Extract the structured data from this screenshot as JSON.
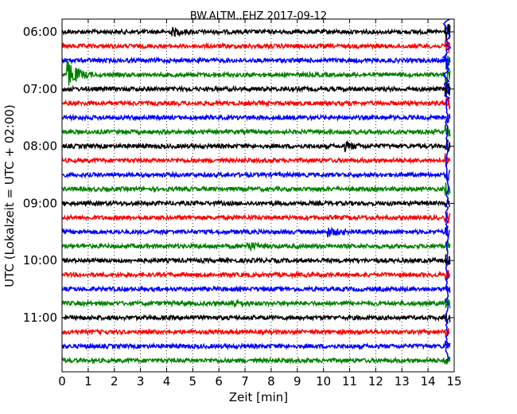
{
  "chart_data": {
    "type": "line",
    "title": "BW.ALTM..EHZ 2017-09-12",
    "xlabel": "Zeit  [min]",
    "ylabel": "UTC (Lokalzeit = UTC + 02:00)",
    "x_range": [
      0,
      15
    ],
    "x_ticks": [
      0,
      1,
      2,
      3,
      4,
      5,
      6,
      7,
      8,
      9,
      10,
      11,
      12,
      13,
      14,
      15
    ],
    "y_tick_labels": [
      "06:00",
      "07:00",
      "08:00",
      "09:00",
      "10:00",
      "11:00"
    ],
    "y_tick_rows": [
      0,
      4,
      8,
      12,
      16,
      20
    ],
    "grid": "vertical dotted",
    "row_interval_minutes": 15,
    "row_colors": [
      "#000000",
      "#ff0000",
      "#0000ff",
      "#008000"
    ],
    "row_count": 24,
    "rows": [
      {
        "start": "06:00",
        "amplitude": 0.12,
        "events": [
          {
            "x": 4.2,
            "amp": 0.2
          },
          {
            "x": 14.7,
            "amp": 0.5
          }
        ]
      },
      {
        "start": "06:15",
        "amplitude": 0.12,
        "events": [
          {
            "x": 14.7,
            "amp": 0.5
          }
        ]
      },
      {
        "start": "06:30",
        "amplitude": 0.12,
        "events": [
          {
            "x": 14.7,
            "amp": 0.5
          }
        ]
      },
      {
        "start": "06:45",
        "amplitude": 0.12,
        "events": [
          {
            "x": 0.2,
            "amp": 0.8
          },
          {
            "x": 14.7,
            "amp": 1.2
          }
        ]
      },
      {
        "start": "07:00",
        "amplitude": 0.12,
        "events": [
          {
            "x": 14.7,
            "amp": 0.4
          }
        ]
      },
      {
        "start": "07:15",
        "amplitude": 0.12,
        "events": [
          {
            "x": 14.7,
            "amp": 0.4
          }
        ]
      },
      {
        "start": "07:30",
        "amplitude": 0.12,
        "events": [
          {
            "x": 14.7,
            "amp": 0.3
          }
        ]
      },
      {
        "start": "07:45",
        "amplitude": 0.12,
        "events": [
          {
            "x": 14.7,
            "amp": 0.3
          }
        ]
      },
      {
        "start": "08:00",
        "amplitude": 0.12,
        "events": [
          {
            "x": 10.8,
            "amp": 0.2
          },
          {
            "x": 14.7,
            "amp": 0.3
          }
        ]
      },
      {
        "start": "08:15",
        "amplitude": 0.12,
        "events": [
          {
            "x": 14.7,
            "amp": 0.3
          }
        ]
      },
      {
        "start": "08:30",
        "amplitude": 0.12,
        "events": [
          {
            "x": 14.7,
            "amp": 0.3
          }
        ]
      },
      {
        "start": "08:45",
        "amplitude": 0.12,
        "events": [
          {
            "x": 14.7,
            "amp": 0.3
          }
        ]
      },
      {
        "start": "09:00",
        "amplitude": 0.12,
        "events": [
          {
            "x": 14.7,
            "amp": 0.25
          }
        ]
      },
      {
        "start": "09:15",
        "amplitude": 0.12,
        "events": [
          {
            "x": 14.7,
            "amp": 0.25
          }
        ]
      },
      {
        "start": "09:30",
        "amplitude": 0.12,
        "events": [
          {
            "x": 10.2,
            "amp": 0.2
          },
          {
            "x": 14.7,
            "amp": 0.25
          }
        ]
      },
      {
        "start": "09:45",
        "amplitude": 0.12,
        "events": [
          {
            "x": 7.1,
            "amp": 0.2
          },
          {
            "x": 14.7,
            "amp": 0.25
          }
        ]
      },
      {
        "start": "10:00",
        "amplitude": 0.12,
        "events": [
          {
            "x": 14.7,
            "amp": 0.25
          }
        ]
      },
      {
        "start": "10:15",
        "amplitude": 0.12,
        "events": [
          {
            "x": 14.7,
            "amp": 0.25
          }
        ]
      },
      {
        "start": "10:30",
        "amplitude": 0.12,
        "events": [
          {
            "x": 14.7,
            "amp": 0.25
          }
        ]
      },
      {
        "start": "10:45",
        "amplitude": 0.12,
        "events": [
          {
            "x": 6.5,
            "amp": 0.2
          },
          {
            "x": 14.7,
            "amp": 0.25
          }
        ]
      },
      {
        "start": "11:00",
        "amplitude": 0.12,
        "events": [
          {
            "x": 14.7,
            "amp": 0.25
          }
        ]
      },
      {
        "start": "11:15",
        "amplitude": 0.12,
        "events": [
          {
            "x": 14.7,
            "amp": 0.25
          }
        ]
      },
      {
        "start": "11:30",
        "amplitude": 0.12,
        "events": [
          {
            "x": 14.7,
            "amp": 0.25
          }
        ]
      },
      {
        "start": "11:45",
        "amplitude": 0.12,
        "events": [
          {
            "x": 14.7,
            "amp": 0.25
          }
        ]
      }
    ],
    "spike": {
      "x": 14.72,
      "from_row": 0,
      "to_row": 23,
      "color": "#0000ff"
    }
  }
}
